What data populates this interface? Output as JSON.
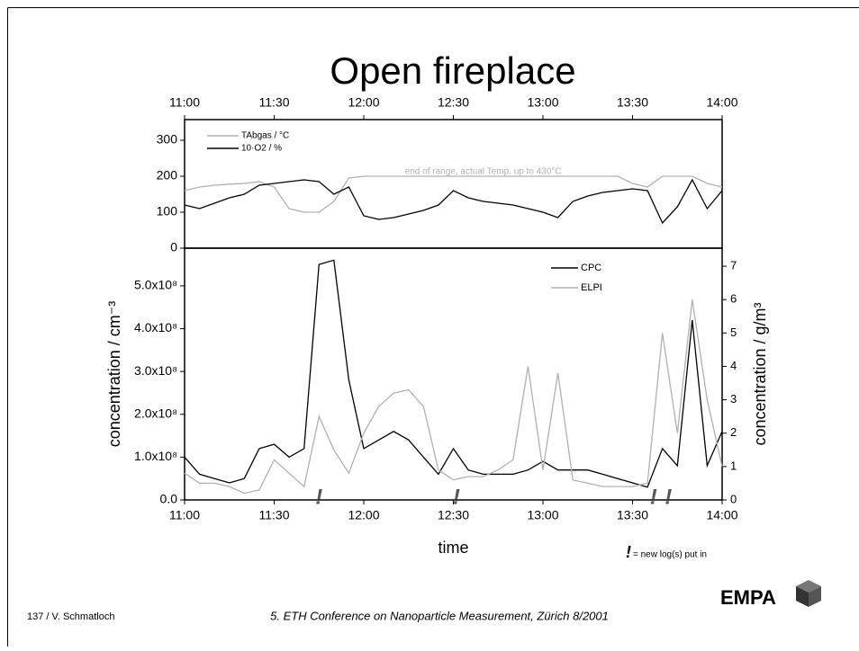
{
  "slide": {
    "title": "Open fireplace",
    "footer_left": "137 / V. Schmatloch",
    "footer_center": "5. ETH Conference on Nanoparticle Measurement, Zürich 8/2001",
    "logo": "EMPA"
  },
  "chart_data": [
    {
      "type": "line",
      "x": [
        "11:00",
        "11:05",
        "11:10",
        "11:15",
        "11:20",
        "11:25",
        "11:30",
        "11:35",
        "11:40",
        "11:45",
        "11:50",
        "11:55",
        "12:00",
        "12:05",
        "12:10",
        "12:15",
        "12:20",
        "12:25",
        "12:30",
        "12:35",
        "12:40",
        "12:45",
        "12:50",
        "12:55",
        "13:00",
        "13:05",
        "13:10",
        "13:15",
        "13:20",
        "13:25",
        "13:30",
        "13:35",
        "13:40",
        "13:45",
        "13:50",
        "13:55",
        "14:00"
      ],
      "xlim": [
        "11:00",
        "14:00"
      ],
      "xticks": [
        "11:00",
        "11:30",
        "12:00",
        "12:30",
        "13:00",
        "13:30",
        "14:00"
      ],
      "ylim": [
        0,
        357.5
      ],
      "yticks": [
        0,
        100,
        200,
        300
      ],
      "legend": "upper left",
      "series": [
        {
          "name": "TAbgas / °C",
          "color": "#b0b0b0",
          "values": [
            160,
            170,
            175,
            178,
            180,
            185,
            170,
            110,
            100,
            100,
            130,
            195,
            200,
            200,
            200,
            200,
            200,
            200,
            200,
            200,
            200,
            200,
            200,
            200,
            200,
            200,
            200,
            200,
            200,
            200,
            180,
            170,
            200,
            200,
            200,
            180,
            170
          ]
        },
        {
          "name": "10·O2 / %",
          "color": "#000000",
          "values": [
            120,
            110,
            125,
            140,
            150,
            175,
            180,
            185,
            190,
            185,
            150,
            170,
            90,
            80,
            85,
            95,
            105,
            120,
            160,
            140,
            130,
            125,
            120,
            110,
            100,
            85,
            130,
            145,
            155,
            160,
            165,
            160,
            70,
            115,
            190,
            110,
            160
          ]
        }
      ],
      "annotation": {
        "text": "end of range, actual Temp. up to 430°C",
        "x": "12:40",
        "y": 213
      }
    },
    {
      "type": "line",
      "x": [
        "11:00",
        "11:05",
        "11:10",
        "11:15",
        "11:20",
        "11:25",
        "11:30",
        "11:35",
        "11:40",
        "11:45",
        "11:50",
        "11:55",
        "12:00",
        "12:05",
        "12:10",
        "12:15",
        "12:20",
        "12:25",
        "12:30",
        "12:35",
        "12:40",
        "12:45",
        "12:50",
        "12:55",
        "13:00",
        "13:05",
        "13:10",
        "13:15",
        "13:20",
        "13:25",
        "13:30",
        "13:35",
        "13:40",
        "13:45",
        "13:50",
        "13:55",
        "14:00"
      ],
      "xlim": [
        "11:00",
        "14:00"
      ],
      "xticks": [
        "11:00",
        "11:30",
        "12:00",
        "12:30",
        "13:00",
        "13:30",
        "14:00"
      ],
      "xlabel": "time",
      "ylabel": "concentration / cm⁻³",
      "y2label": "concentration / g/m³",
      "ylim": [
        0,
        588000000.0
      ],
      "yticks": [
        {
          "value": 0,
          "label": "0.0"
        },
        {
          "value": 100000000.0,
          "label": "1.0x10⁸"
        },
        {
          "value": 200000000.0,
          "label": "2.0x10⁸"
        },
        {
          "value": 300000000.0,
          "label": "3.0x10⁸"
        },
        {
          "value": 400000000.0,
          "label": "4.0x10⁸"
        },
        {
          "value": 500000000.0,
          "label": "5.0x10⁸"
        }
      ],
      "y2lim": [
        0,
        7.54
      ],
      "y2ticks": [
        0,
        1,
        2,
        3,
        4,
        5,
        6,
        7
      ],
      "legend": "upper right",
      "series": [
        {
          "name": "CPC",
          "color": "#000000",
          "values": [
            100000000.0,
            60000000.0,
            50000000.0,
            40000000.0,
            50000000.0,
            120000000.0,
            130000000.0,
            100000000.0,
            120000000.0,
            550000000.0,
            560000000.0,
            280000000.0,
            120000000.0,
            140000000.0,
            160000000.0,
            140000000.0,
            100000000.0,
            60000000.0,
            120000000.0,
            70000000.0,
            60000000.0,
            60000000.0,
            60000000.0,
            70000000.0,
            90000000.0,
            70000000.0,
            70000000.0,
            70000000.0,
            60000000.0,
            50000000.0,
            40000000.0,
            30000000.0,
            120000000.0,
            80000000.0,
            420000000.0,
            80000000.0,
            160000000.0
          ]
        },
        {
          "name": "ELPI",
          "color": "#b0b0b0",
          "axis": "y2",
          "values": [
            0.8,
            0.5,
            0.5,
            0.4,
            0.2,
            0.3,
            1.2,
            0.8,
            0.4,
            2.5,
            1.5,
            0.8,
            2.0,
            2.8,
            3.2,
            3.3,
            2.8,
            0.9,
            0.6,
            0.7,
            0.7,
            0.9,
            1.2,
            4.0,
            0.9,
            3.8,
            0.6,
            0.5,
            0.4,
            0.4,
            0.4,
            0.5,
            5.0,
            2.0,
            6.0,
            3.0,
            1.0
          ]
        }
      ],
      "log_markers": {
        "symbol": "!",
        "x": [
          "11:45",
          "12:31",
          "13:37",
          "13:42"
        ],
        "note": "= new log(s) put in"
      }
    }
  ]
}
